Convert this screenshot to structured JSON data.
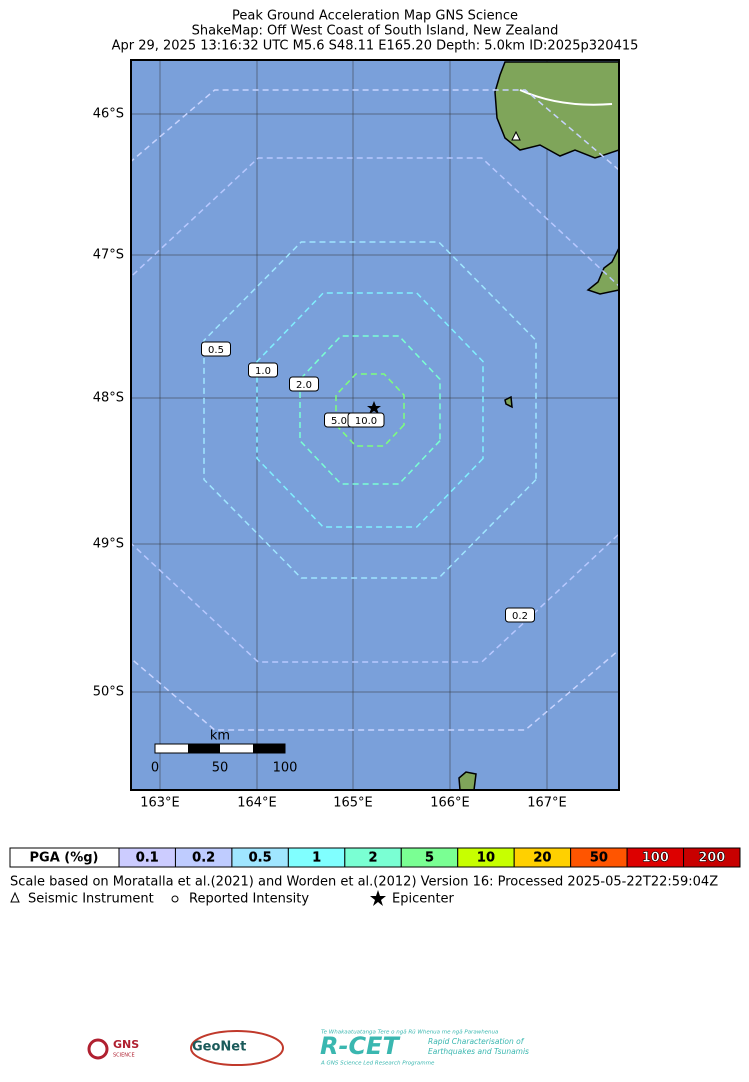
{
  "title": [
    "Peak Ground Acceleration Map GNS Science",
    "ShakeMap: Off West Coast of South Island, New Zealand",
    "Apr 29, 2025 13:16:32 UTC M5.6 S48.11 E165.20 Depth: 5.0km ID:2025p320415"
  ],
  "map": {
    "lat_labels": [
      "46°S",
      "47°S",
      "48°S",
      "49°S",
      "50°S"
    ],
    "lon_labels": [
      "163°E",
      "164°E",
      "165°E",
      "166°E",
      "167°E"
    ],
    "contour_labels": [
      "0.5",
      "1.0",
      "2.0",
      "5.0",
      "10.0",
      "0.2"
    ],
    "scale_bar": {
      "unit": "km",
      "labels": [
        "0",
        "50",
        "100"
      ]
    }
  },
  "colorbar": {
    "header": "PGA (%g)",
    "labels": [
      "0.1",
      "0.2",
      "0.5",
      "1",
      "2",
      "5",
      "10",
      "20",
      "50",
      "100",
      "200"
    ]
  },
  "footer": {
    "note": "Scale based on Moratalla et al.(2021) and Worden et al.(2012) Version 16: Processed 2025-05-22T22:59:04Z",
    "legend": [
      "Seismic Instrument",
      "Reported Intensity",
      "Epicenter"
    ]
  },
  "logos": {
    "gns": "GNS",
    "gns_sub": "SCIENCE",
    "geonet": "GeoNet",
    "rcet": "R-CET",
    "rcet_top": "Te Whakaatuatanga Tere o ngā Rū Whenua me ngā Parawhenua",
    "rcet_line1": "Rapid Characterisation of",
    "rcet_line2": "Earthquakes and Tsunamis",
    "rcet_bottom": "A GNS Science Led Research Programme"
  }
}
